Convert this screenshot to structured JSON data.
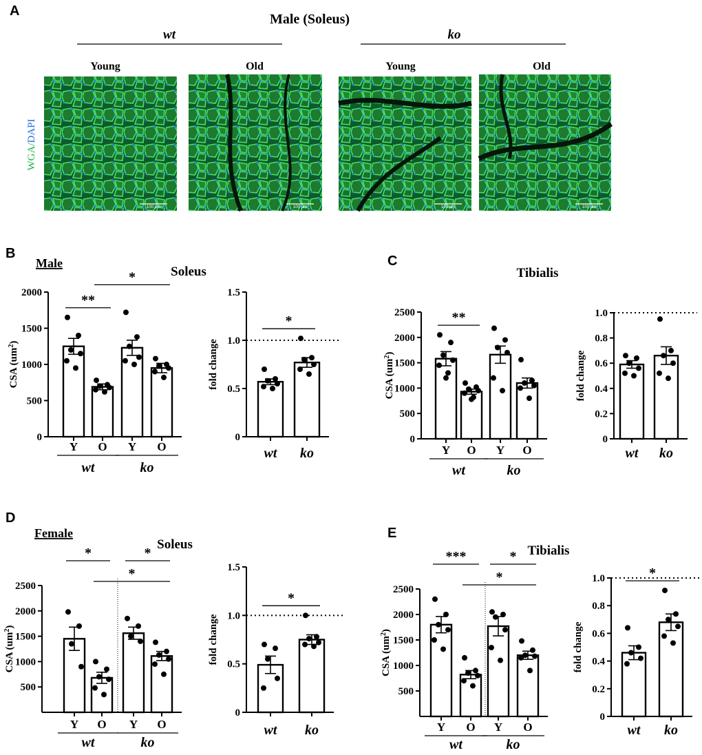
{
  "colors": {
    "wga": "#22b04a",
    "dapi": "#1f6fd6",
    "ink": "#000000"
  },
  "panel_a": {
    "letter": "A",
    "title": "Male (Soleus)",
    "group_wt": "wt",
    "group_ko": "ko",
    "side_label_wga": "WGA",
    "side_label_sep": "/",
    "side_label_dapi": "DAPI",
    "images": [
      {
        "label": "Young",
        "scale_text": "100 µm"
      },
      {
        "label": "Old",
        "scale_text": "100 µm"
      },
      {
        "label": "Young",
        "scale_text": "100 µm"
      },
      {
        "label": "Old",
        "scale_text": "100 µm"
      }
    ]
  },
  "panel_letters": {
    "b": "B",
    "c": "C",
    "d": "D",
    "e": "E"
  },
  "panel_b": {
    "sex": "Male",
    "muscle": "Soleus"
  },
  "panel_c": {
    "muscle": "Tibialis"
  },
  "panel_d": {
    "sex": "Female",
    "muscle": "Soleus"
  },
  "panel_e": {
    "muscle": "Tibialis"
  },
  "chart_data": [
    {
      "id": "B-csa",
      "type": "bar",
      "ylabel_main": "CSA (um",
      "ylabel_sup": "2",
      "ylabel_end": ")",
      "ylim": [
        0,
        2000
      ],
      "yticks": [
        0,
        500,
        1000,
        1500,
        2000
      ],
      "categories": [
        "Y",
        "O",
        "Y",
        "O"
      ],
      "groups": [
        {
          "label": "wt"
        },
        {
          "label": "ko"
        }
      ],
      "values": [
        1250,
        690,
        1230,
        950
      ],
      "sem": [
        110,
        40,
        105,
        65
      ],
      "points": [
        [
          1650,
          1400,
          1200,
          1150,
          1050,
          950
        ],
        [
          780,
          720,
          700,
          680,
          650,
          620
        ],
        [
          1720,
          1380,
          1250,
          1100,
          1050,
          1000
        ],
        [
          1080,
          1000,
          980,
          950,
          900,
          820
        ]
      ],
      "significance": [
        {
          "from": 0,
          "to": 1,
          "label": "**"
        },
        {
          "from": 1,
          "to": 3,
          "label": "*"
        }
      ]
    },
    {
      "id": "B-fold",
      "type": "bar",
      "ylabel": "fold change",
      "ylim": [
        0,
        1.5
      ],
      "yticks": [
        "0",
        "0.5",
        "1.0",
        "1.5"
      ],
      "categories": [
        "wt",
        "ko"
      ],
      "values": [
        0.57,
        0.77
      ],
      "sem": [
        0.03,
        0.05
      ],
      "points": [
        [
          0.7,
          0.6,
          0.58,
          0.55,
          0.52,
          0.5
        ],
        [
          1.02,
          0.82,
          0.8,
          0.75,
          0.7,
          0.65
        ]
      ],
      "reference_line": 1.0,
      "significance": [
        {
          "from": 0,
          "to": 1,
          "label": "*"
        }
      ]
    },
    {
      "id": "C-csa",
      "type": "bar",
      "ylabel_main": "CSA (um",
      "ylabel_sup": "2",
      "ylabel_end": ")",
      "ylim": [
        0,
        2500
      ],
      "yticks": [
        0,
        500,
        1000,
        1500,
        2000,
        2500
      ],
      "categories": [
        "Y",
        "O",
        "Y",
        "O"
      ],
      "groups": [
        {
          "label": "wt"
        },
        {
          "label": "ko"
        }
      ],
      "values": [
        1580,
        930,
        1660,
        1100
      ],
      "sem": [
        140,
        50,
        170,
        100
      ],
      "points": [
        [
          2050,
          1900,
          1650,
          1550,
          1450,
          1300,
          1200
        ],
        [
          1100,
          1020,
          980,
          950,
          900,
          820,
          780
        ],
        [
          2180,
          1950,
          1800,
          1700,
          1200,
          950
        ],
        [
          1560,
          1150,
          1100,
          1050,
          1000,
          800
        ]
      ],
      "significance": [
        {
          "from": 0,
          "to": 1,
          "label": "**"
        }
      ]
    },
    {
      "id": "C-fold",
      "type": "bar",
      "ylabel": "fold change",
      "ylim": [
        0,
        1.0
      ],
      "yticks": [
        "0",
        "0.2",
        "0.4",
        "0.6",
        "0.8",
        "1.0"
      ],
      "categories": [
        "wt",
        "ko"
      ],
      "values": [
        0.59,
        0.66
      ],
      "sem": [
        0.03,
        0.07
      ],
      "points": [
        [
          0.66,
          0.64,
          0.6,
          0.56,
          0.52,
          0.5
        ],
        [
          0.95,
          0.7,
          0.66,
          0.6,
          0.52,
          0.48
        ]
      ],
      "reference_line": 1.0,
      "significance": []
    },
    {
      "id": "D-csa",
      "type": "bar",
      "ylabel_main": "CSA (um",
      "ylabel_sup": "2",
      "ylabel_end": ")",
      "ylim": [
        0,
        2500
      ],
      "yticks": [
        500,
        1000,
        1500,
        2000,
        2500
      ],
      "categories": [
        "Y",
        "O",
        "Y",
        "O"
      ],
      "groups": [
        {
          "label": "wt"
        },
        {
          "label": "ko"
        }
      ],
      "values": [
        1450,
        680,
        1560,
        1110
      ],
      "sem": [
        230,
        110,
        120,
        90
      ],
      "points": [
        [
          1980,
          1700,
          1350,
          900
        ],
        [
          1000,
          850,
          700,
          650,
          480,
          350
        ],
        [
          1850,
          1700,
          1500,
          1400
        ],
        [
          1380,
          1200,
          1130,
          1050,
          950,
          750
        ]
      ],
      "divider_between_groups": true,
      "significance": [
        {
          "from": 0,
          "to": 1,
          "label": "*"
        },
        {
          "from": 2,
          "to": 3,
          "label": "*"
        },
        {
          "from": 1,
          "to": 3,
          "label": "*"
        }
      ]
    },
    {
      "id": "D-fold",
      "type": "bar",
      "ylabel": "fold change",
      "ylim": [
        0,
        1.5
      ],
      "yticks": [
        "0",
        "0.5",
        "1.0",
        "1.5"
      ],
      "categories": [
        "wt",
        "ko"
      ],
      "values": [
        0.49,
        0.75
      ],
      "sem": [
        0.09,
        0.05
      ],
      "points": [
        [
          0.7,
          0.66,
          0.55,
          0.35,
          0.25
        ],
        [
          1.0,
          0.78,
          0.76,
          0.72,
          0.7,
          0.68
        ]
      ],
      "reference_line": 1.0,
      "significance": [
        {
          "from": 0,
          "to": 1,
          "label": "*"
        }
      ]
    },
    {
      "id": "E-csa",
      "type": "bar",
      "ylabel_main": "CSA (um",
      "ylabel_sup": "2",
      "ylabel_end": ")",
      "ylim": [
        0,
        2500
      ],
      "yticks": [
        500,
        1000,
        1500,
        2000,
        2500
      ],
      "categories": [
        "Y",
        "O",
        "Y",
        "O"
      ],
      "groups": [
        {
          "label": "wt"
        },
        {
          "label": "ko"
        }
      ],
      "values": [
        1800,
        820,
        1770,
        1200
      ],
      "sem": [
        160,
        80,
        190,
        80
      ],
      "points": [
        [
          2300,
          2000,
          1800,
          1700,
          1500,
          1320
        ],
        [
          1150,
          900,
          850,
          800,
          700,
          600
        ],
        [
          2050,
          2000,
          1950,
          1700,
          1350,
          1100
        ],
        [
          1480,
          1300,
          1200,
          1180,
          1150,
          900
        ]
      ],
      "divider_between_groups": true,
      "significance": [
        {
          "from": 0,
          "to": 1,
          "label": "***"
        },
        {
          "from": 2,
          "to": 3,
          "label": "*"
        },
        {
          "from": 1,
          "to": 3,
          "label": "*"
        }
      ]
    },
    {
      "id": "E-fold",
      "type": "bar",
      "ylabel": "fold change",
      "ylim": [
        0,
        1.0
      ],
      "yticks": [
        "0",
        "0.2",
        "0.4",
        "0.6",
        "0.8",
        "1.0"
      ],
      "categories": [
        "wt",
        "ko"
      ],
      "values": [
        0.46,
        0.68
      ],
      "sem": [
        0.05,
        0.06
      ],
      "points": [
        [
          0.64,
          0.5,
          0.46,
          0.42,
          0.38
        ],
        [
          0.91,
          0.74,
          0.7,
          0.65,
          0.58,
          0.53
        ]
      ],
      "reference_line": 1.0,
      "significance": [
        {
          "from": 0,
          "to": 1,
          "label": "*"
        }
      ]
    }
  ]
}
